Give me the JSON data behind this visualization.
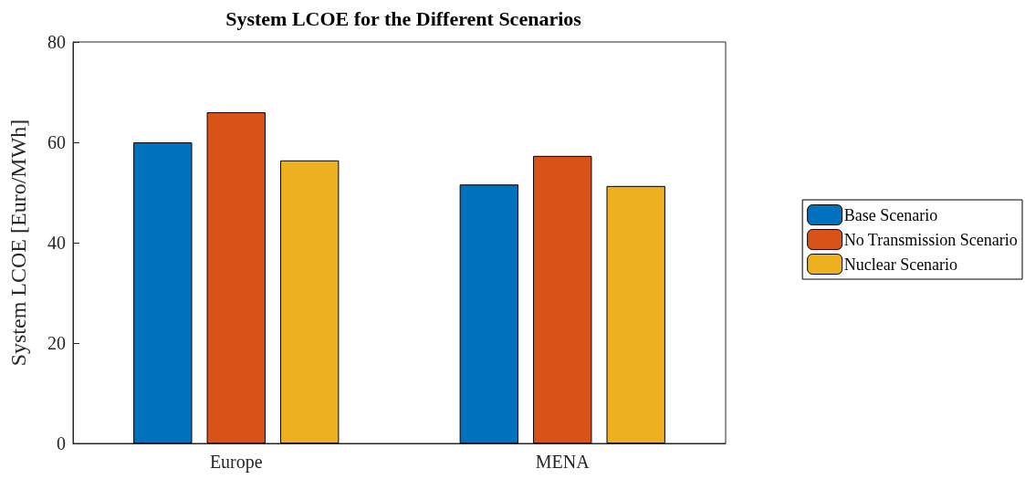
{
  "chart_data": {
    "type": "bar",
    "title": "System LCOE for the Different Scenarios",
    "ylabel": "System LCOE [Euro/MWh]",
    "categories": [
      "Europe",
      "MENA"
    ],
    "series": [
      {
        "name": "Base Scenario",
        "color": "#0072bd",
        "values": [
          60.0,
          51.6
        ]
      },
      {
        "name": "No Transmission Scenario",
        "color": "#d95319",
        "values": [
          66.0,
          57.3
        ]
      },
      {
        "name": "Nuclear Scenario",
        "color": "#edb120",
        "values": [
          56.4,
          51.3
        ]
      }
    ],
    "ylim": [
      0,
      80
    ],
    "yticks": [
      0,
      20,
      40,
      60,
      80
    ],
    "grid": false,
    "legend": "right"
  }
}
